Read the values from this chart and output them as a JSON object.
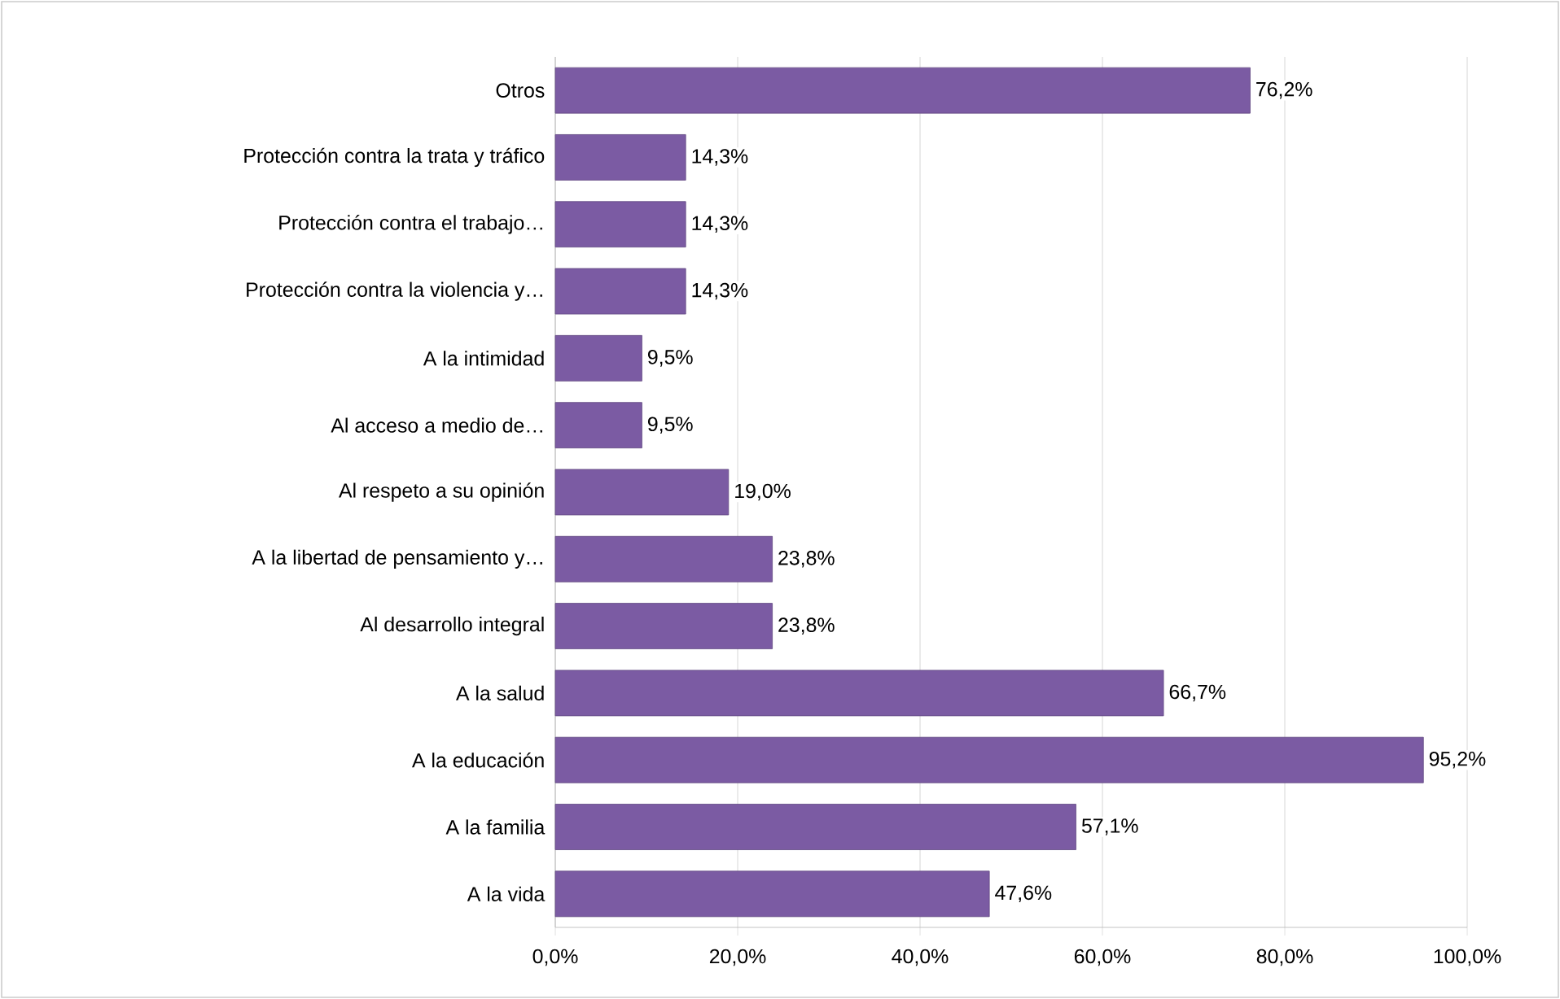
{
  "chart_data": {
    "type": "bar",
    "orientation": "horizontal",
    "categories": [
      "Otros",
      "Protección contra la trata y tráfico",
      "Protección contra el trabajo…",
      "Protección contra la violencia y…",
      "A la intimidad",
      "Al acceso a medio de…",
      "Al respeto a su opinión",
      "A la libertad de pensamiento y…",
      "Al desarrollo integral",
      "A la salud",
      "A la educación",
      "A la familia",
      "A la vida"
    ],
    "values": [
      76.2,
      14.3,
      14.3,
      14.3,
      9.5,
      9.5,
      19.0,
      23.8,
      23.8,
      66.7,
      95.2,
      57.1,
      47.6
    ],
    "value_labels": [
      "76,2%",
      "14,3%",
      "14,3%",
      "14,3%",
      "9,5%",
      "9,5%",
      "19,0%",
      "23,8%",
      "23,8%",
      "66,7%",
      "95,2%",
      "57,1%",
      "47,6%"
    ],
    "color": "#7b5ba3",
    "xlim": [
      0,
      100
    ],
    "xticks": [
      {
        "value": 0,
        "label": "0,0%"
      },
      {
        "value": 20,
        "label": "20,0%"
      },
      {
        "value": 40,
        "label": "40,0%"
      },
      {
        "value": 60,
        "label": "60,0%"
      },
      {
        "value": 80,
        "label": "80,0%"
      },
      {
        "value": 100,
        "label": "100,0%"
      }
    ],
    "grid": "x"
  }
}
